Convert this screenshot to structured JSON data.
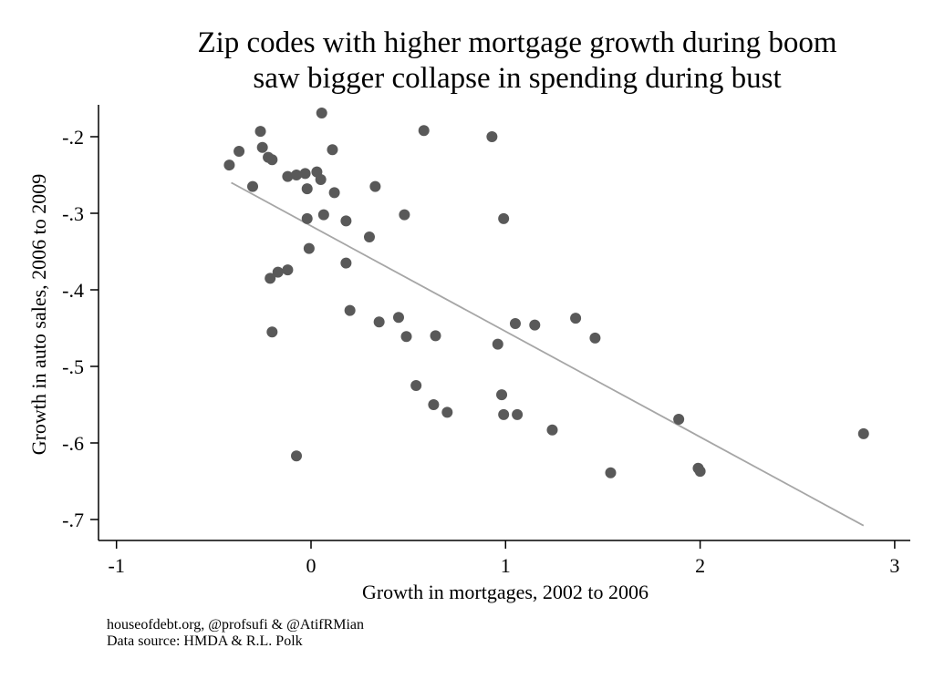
{
  "chart_data": {
    "type": "scatter",
    "title": [
      "Zip codes with higher mortgage growth during boom",
      "saw bigger collapse in spending during bust"
    ],
    "xlabel": "Growth in mortgages, 2002 to 2006",
    "ylabel": "Growth in auto sales, 2006 to 2009",
    "xlim": [
      -1.1,
      3.08
    ],
    "ylim": [
      -0.727,
      -0.152
    ],
    "xticks": [
      -1,
      0,
      1,
      2,
      3
    ],
    "xtick_labels": [
      "-1",
      "0",
      "1",
      "2",
      "3"
    ],
    "yticks": [
      -0.2,
      -0.3,
      -0.4,
      -0.5,
      -0.6,
      -0.7
    ],
    "ytick_labels": [
      "-.2",
      "-.3",
      "-.4",
      "-.5",
      "-.6",
      "-.7"
    ],
    "grid": false,
    "marker_color": "#595959",
    "fit_line_color": "#a6a6a6",
    "fit_line": {
      "x": [
        -0.41,
        2.84
      ],
      "y": [
        -0.26,
        -0.708
      ]
    },
    "points": [
      [
        -0.42,
        -0.237
      ],
      [
        -0.37,
        -0.219
      ],
      [
        -0.3,
        -0.265
      ],
      [
        -0.26,
        -0.193
      ],
      [
        -0.25,
        -0.214
      ],
      [
        -0.22,
        -0.227
      ],
      [
        -0.2,
        -0.23
      ],
      [
        -0.12,
        -0.252
      ],
      [
        -0.075,
        -0.25
      ],
      [
        -0.03,
        -0.248
      ],
      [
        -0.02,
        -0.268
      ],
      [
        0.03,
        -0.246
      ],
      [
        0.05,
        -0.256
      ],
      [
        0.055,
        -0.169
      ],
      [
        0.11,
        -0.217
      ],
      [
        0.12,
        -0.273
      ],
      [
        0.065,
        -0.302
      ],
      [
        -0.02,
        -0.307
      ],
      [
        -0.01,
        -0.346
      ],
      [
        0.18,
        -0.31
      ],
      [
        0.33,
        -0.265
      ],
      [
        0.3,
        -0.331
      ],
      [
        0.48,
        -0.302
      ],
      [
        0.58,
        -0.192
      ],
      [
        0.93,
        -0.2
      ],
      [
        0.99,
        -0.307
      ],
      [
        0.18,
        -0.365
      ],
      [
        -0.12,
        -0.374
      ],
      [
        -0.17,
        -0.377
      ],
      [
        -0.21,
        -0.385
      ],
      [
        -0.2,
        -0.455
      ],
      [
        0.2,
        -0.427
      ],
      [
        0.35,
        -0.442
      ],
      [
        0.45,
        -0.436
      ],
      [
        0.49,
        -0.461
      ],
      [
        0.64,
        -0.46
      ],
      [
        0.54,
        -0.525
      ],
      [
        0.63,
        -0.55
      ],
      [
        0.7,
        -0.56
      ],
      [
        0.96,
        -0.471
      ],
      [
        1.05,
        -0.444
      ],
      [
        1.15,
        -0.446
      ],
      [
        1.36,
        -0.437
      ],
      [
        1.46,
        -0.463
      ],
      [
        0.98,
        -0.537
      ],
      [
        0.99,
        -0.563
      ],
      [
        1.06,
        -0.563
      ],
      [
        1.24,
        -0.583
      ],
      [
        1.54,
        -0.639
      ],
      [
        1.89,
        -0.569
      ],
      [
        1.99,
        -0.633
      ],
      [
        2.0,
        -0.637
      ],
      [
        2.84,
        -0.588
      ],
      [
        -0.075,
        -0.617
      ]
    ]
  },
  "footer": {
    "credit": "houseofdebt.org, @profsufi & @AtifRMian",
    "source": "Data source: HMDA & R.L. Polk"
  }
}
